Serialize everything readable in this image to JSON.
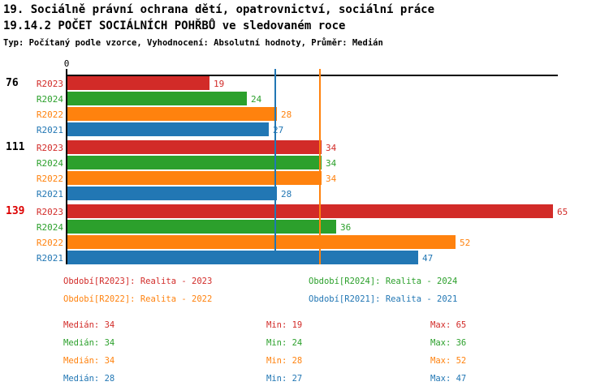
{
  "header": {
    "title_line1": "19. Sociálně právní ochrana dětí, opatrovnictví, sociální práce",
    "title_line2": "19.14.2 POČET SOCIÁLNÍCH POHŘBŮ ve sledovaném roce",
    "subtitle": "Typ: Počítaný podle vzorce, Vyhodnocení: Absolutní hodnoty, Průměr: Medián"
  },
  "colors": {
    "r2023": "#d22b28",
    "r2024": "#2ca02c",
    "r2022": "#ff820e",
    "r2021": "#2277b4",
    "highlight_red": "#dd0000",
    "black": "#000000"
  },
  "chart_data": {
    "type": "bar",
    "orientation": "horizontal",
    "axis_zero_label": "0",
    "xlim": [
      0,
      66
    ],
    "series_order": [
      "R2023",
      "R2024",
      "R2022",
      "R2021"
    ],
    "groups": [
      {
        "label": "76",
        "label_color_key": "black",
        "bars": [
          {
            "series": "R2023",
            "color_key": "r2023",
            "value": 19
          },
          {
            "series": "R2024",
            "color_key": "r2024",
            "value": 24
          },
          {
            "series": "R2022",
            "color_key": "r2022",
            "value": 28
          },
          {
            "series": "R2021",
            "color_key": "r2021",
            "value": 27
          }
        ]
      },
      {
        "label": "111",
        "label_color_key": "black",
        "bars": [
          {
            "series": "R2023",
            "color_key": "r2023",
            "value": 34
          },
          {
            "series": "R2024",
            "color_key": "r2024",
            "value": 34
          },
          {
            "series": "R2022",
            "color_key": "r2022",
            "value": 34
          },
          {
            "series": "R2021",
            "color_key": "r2021",
            "value": 28
          }
        ]
      },
      {
        "label": "139",
        "label_color_key": "highlight_red",
        "bars": [
          {
            "series": "R2023",
            "color_key": "r2023",
            "value": 65
          },
          {
            "series": "R2024",
            "color_key": "r2024",
            "value": 36
          },
          {
            "series": "R2022",
            "color_key": "r2022",
            "value": 52
          },
          {
            "series": "R2021",
            "color_key": "r2021",
            "value": 47
          }
        ]
      }
    ],
    "reference_lines": [
      {
        "value": 34,
        "color_key": "r2022"
      },
      {
        "value": 28,
        "color_key": "r2021"
      }
    ]
  },
  "legend": [
    {
      "label": "Období[R2023]: Realita - 2023",
      "color_key": "r2023"
    },
    {
      "label": "Období[R2024]: Realita - 2024",
      "color_key": "r2024"
    },
    {
      "label": "Období[R2022]: Realita - 2022",
      "color_key": "r2022"
    },
    {
      "label": "Období[R2021]: Realita - 2021",
      "color_key": "r2021"
    }
  ],
  "stats": {
    "labels": {
      "median": "Medián",
      "min": "Min",
      "max": "Max"
    },
    "rows": [
      {
        "color_key": "r2023",
        "median": 34,
        "min": 19,
        "max": 65
      },
      {
        "color_key": "r2024",
        "median": 34,
        "min": 24,
        "max": 36
      },
      {
        "color_key": "r2022",
        "median": 34,
        "min": 28,
        "max": 52
      },
      {
        "color_key": "r2021",
        "median": 28,
        "min": 27,
        "max": 47
      }
    ]
  }
}
